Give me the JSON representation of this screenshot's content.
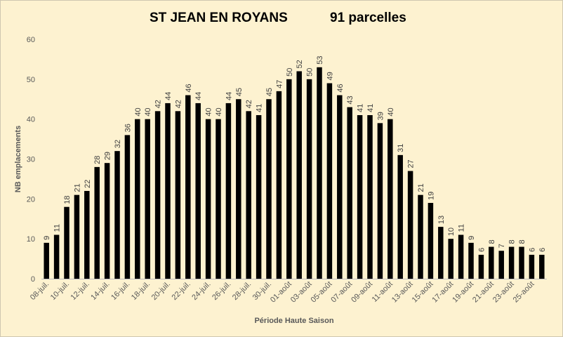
{
  "chart_data": {
    "type": "bar",
    "title": "ST JEAN EN ROYANS",
    "subtitle": "91 parcelles",
    "xlabel": "Période Haute Saison",
    "ylabel": "NB emplacements",
    "ylim": [
      0,
      60
    ],
    "yticks": [
      0,
      10,
      20,
      30,
      40,
      50,
      60
    ],
    "grid": false,
    "legend": "none",
    "bar_color": "#000000",
    "background_color": "#fdf2d0",
    "categories": [
      "08-juil.",
      "09-juil.",
      "10-juil.",
      "11-juil.",
      "12-juil.",
      "13-juil.",
      "14-juil.",
      "15-juil.",
      "16-juil.",
      "17-juil.",
      "18-juil.",
      "19-juil.",
      "20-juil.",
      "21-juil.",
      "22-juil.",
      "23-juil.",
      "24-juil.",
      "25-juil.",
      "26-juil.",
      "27-juil.",
      "28-juil.",
      "29-juil.",
      "30-juil.",
      "31-juil.",
      "01-août",
      "02-août",
      "03-août",
      "04-août",
      "05-août",
      "06-août",
      "07-août",
      "08-août",
      "09-août",
      "10-août",
      "11-août",
      "12-août",
      "13-août",
      "14-août",
      "15-août",
      "16-août",
      "17-août",
      "18-août",
      "19-août",
      "20-août",
      "21-août",
      "22-août",
      "23-août",
      "24-août",
      "25-août",
      "26-août"
    ],
    "tick_labels": [
      "08-juil.",
      "",
      "10-juil.",
      "",
      "12-juil.",
      "",
      "14-juil.",
      "",
      "16-juil.",
      "",
      "18-juil.",
      "",
      "20-juil.",
      "",
      "22-juil.",
      "",
      "24-juil.",
      "",
      "26-juil.",
      "",
      "28-juil.",
      "",
      "30-juil.",
      "",
      "01-août",
      "",
      "03-août",
      "",
      "05-août",
      "",
      "07-août",
      "",
      "09-août",
      "",
      "11-août",
      "",
      "13-août",
      "",
      "15-août",
      "",
      "17-août",
      "",
      "19-août",
      "",
      "21-août",
      "",
      "23-août",
      "",
      "25-août",
      ""
    ],
    "values": [
      9,
      11,
      18,
      21,
      22,
      28,
      29,
      32,
      36,
      40,
      40,
      42,
      44,
      42,
      46,
      44,
      40,
      40,
      44,
      45,
      42,
      41,
      45,
      47,
      50,
      52,
      50,
      53,
      49,
      46,
      43,
      41,
      41,
      39,
      40,
      31,
      27,
      21,
      19,
      13,
      10,
      11,
      9,
      6,
      8,
      7,
      8,
      8,
      6,
      6
    ]
  }
}
